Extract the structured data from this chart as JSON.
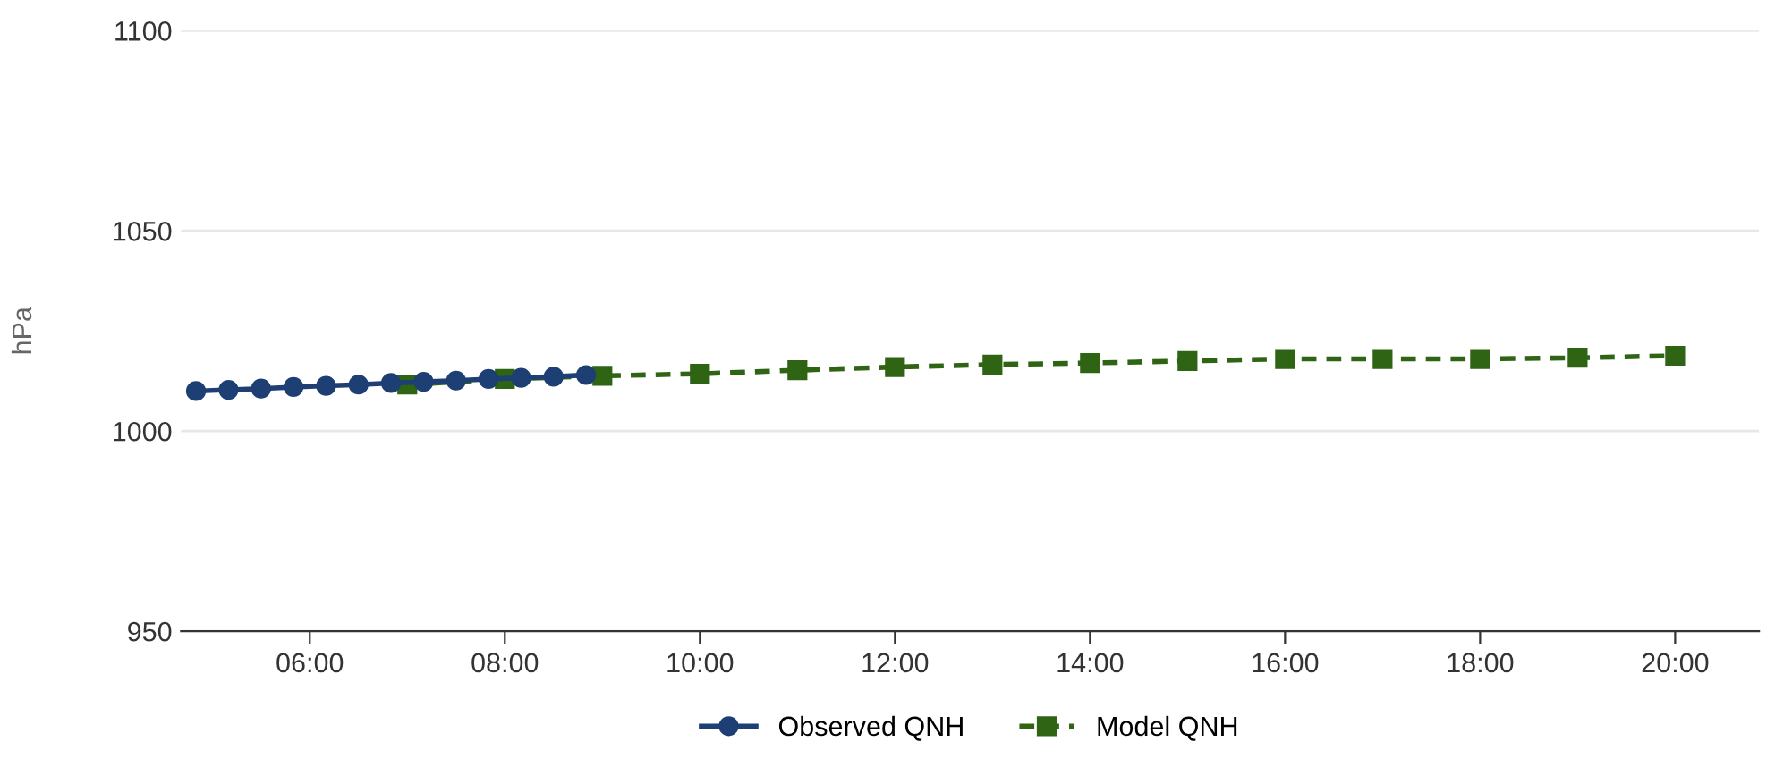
{
  "chart_data": {
    "type": "line",
    "ylabel": "hPa",
    "series": [
      {
        "name": "Observed QNH",
        "color": "#1d3f73",
        "marker": "circle",
        "line_style": "solid",
        "x": [
          4.833,
          5.167,
          5.5,
          5.833,
          6.167,
          6.5,
          6.833,
          7.167,
          7.5,
          7.833,
          8.167,
          8.5,
          8.833
        ],
        "values": [
          1010,
          1010.3,
          1010.6,
          1011,
          1011.3,
          1011.6,
          1012,
          1012.3,
          1012.6,
          1013,
          1013.3,
          1013.6,
          1014
        ]
      },
      {
        "name": "Model QNH",
        "color": "#2e6414",
        "marker": "square",
        "line_style": "dashed",
        "x": [
          7,
          8,
          9,
          10,
          11,
          12,
          13,
          14,
          15,
          16,
          17,
          18,
          19,
          20
        ],
        "values": [
          1011.6,
          1013,
          1013.8,
          1014.3,
          1015.2,
          1016,
          1016.6,
          1017,
          1017.5,
          1018,
          1018,
          1018,
          1018.3,
          1018.8
        ]
      }
    ],
    "xlim": [
      4.68,
      20.86
    ],
    "xticks": [
      {
        "value": 6,
        "label": "06:00"
      },
      {
        "value": 8,
        "label": "08:00"
      },
      {
        "value": 10,
        "label": "10:00"
      },
      {
        "value": 12,
        "label": "12:00"
      },
      {
        "value": 14,
        "label": "14:00"
      },
      {
        "value": 16,
        "label": "16:00"
      },
      {
        "value": 18,
        "label": "18:00"
      },
      {
        "value": 20,
        "label": "20:00"
      }
    ],
    "ylim": [
      950,
      1100
    ],
    "yticks": [
      950,
      1000,
      1050,
      1100
    ],
    "grid": "y",
    "legend": "bottom"
  }
}
